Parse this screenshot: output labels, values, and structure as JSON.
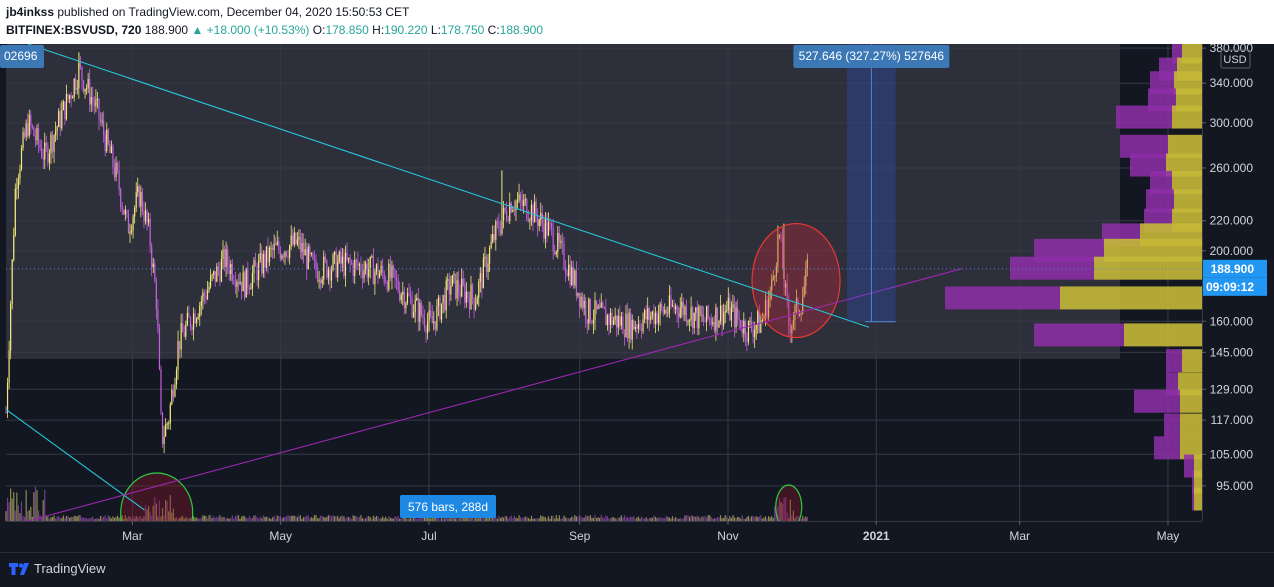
{
  "header": {
    "author": "jb4inkss",
    "published_text": "published on TradingView.com, December 04, 2020 15:50:53 CET",
    "symbol": "BITFINEX:BSVUSD, 720",
    "last": "188.900",
    "change": "▲ +18.000 (+10.53%)",
    "ohlc": [
      {
        "label": "O:",
        "value": "178.850"
      },
      {
        "label": "H:",
        "value": "190.220"
      },
      {
        "label": "L:",
        "value": "178.750"
      },
      {
        "label": "C:",
        "value": "188.900"
      }
    ]
  },
  "footer": {
    "brand": "TradingView"
  },
  "chart_data": {
    "type": "candlestick",
    "title": "BITFINEX:BSVUSD, 720",
    "currency": "USD",
    "y_scale": "log",
    "ylim": [
      85,
      385
    ],
    "y_ticks": [
      380,
      340,
      300,
      260,
      220,
      200,
      160,
      145,
      129,
      117,
      105,
      95
    ],
    "y_tick_labels": [
      "380.000",
      "340.000",
      "300.000",
      "260.000",
      "220.000",
      "200.000",
      "160.000",
      "145.000",
      "129.000",
      "117.000",
      "105.000",
      "95.000"
    ],
    "x_range": [
      "2020-01-09",
      "2021-05-15"
    ],
    "x_ticks": [
      {
        "date": "2020-03-01",
        "label": "Mar"
      },
      {
        "date": "2020-05-01",
        "label": "May"
      },
      {
        "date": "2020-07-01",
        "label": "Jul"
      },
      {
        "date": "2020-09-01",
        "label": "Sep"
      },
      {
        "date": "2020-11-01",
        "label": "Nov"
      },
      {
        "date": "2021-01-01",
        "label": "2021"
      },
      {
        "date": "2021-03-01",
        "label": "Mar"
      },
      {
        "date": "2021-05-01",
        "label": "May"
      }
    ],
    "price_path": [
      {
        "date": "2020-01-09",
        "price": 120
      },
      {
        "date": "2020-01-13",
        "price": 250
      },
      {
        "date": "2020-01-18",
        "price": 300
      },
      {
        "date": "2020-01-25",
        "price": 270
      },
      {
        "date": "2020-02-03",
        "price": 320
      },
      {
        "date": "2020-02-08",
        "price": 355
      },
      {
        "date": "2020-02-15",
        "price": 315
      },
      {
        "date": "2020-02-24",
        "price": 250
      },
      {
        "date": "2020-02-28",
        "price": 215
      },
      {
        "date": "2020-03-04",
        "price": 240
      },
      {
        "date": "2020-03-08",
        "price": 210
      },
      {
        "date": "2020-03-11",
        "price": 170
      },
      {
        "date": "2020-03-13",
        "price": 110
      },
      {
        "date": "2020-03-16",
        "price": 118
      },
      {
        "date": "2020-03-20",
        "price": 150
      },
      {
        "date": "2020-03-28",
        "price": 168
      },
      {
        "date": "2020-04-08",
        "price": 195
      },
      {
        "date": "2020-04-16",
        "price": 180
      },
      {
        "date": "2020-04-28",
        "price": 200
      },
      {
        "date": "2020-05-08",
        "price": 205
      },
      {
        "date": "2020-05-15",
        "price": 188
      },
      {
        "date": "2020-05-25",
        "price": 192
      },
      {
        "date": "2020-06-05",
        "price": 190
      },
      {
        "date": "2020-06-15",
        "price": 184
      },
      {
        "date": "2020-06-25",
        "price": 168
      },
      {
        "date": "2020-07-02",
        "price": 158
      },
      {
        "date": "2020-07-10",
        "price": 180
      },
      {
        "date": "2020-07-20",
        "price": 172
      },
      {
        "date": "2020-07-28",
        "price": 210
      },
      {
        "date": "2020-08-04",
        "price": 235
      },
      {
        "date": "2020-08-12",
        "price": 228
      },
      {
        "date": "2020-08-20",
        "price": 212
      },
      {
        "date": "2020-08-28",
        "price": 188
      },
      {
        "date": "2020-09-04",
        "price": 165
      },
      {
        "date": "2020-09-12",
        "price": 162
      },
      {
        "date": "2020-09-22",
        "price": 158
      },
      {
        "date": "2020-10-02",
        "price": 164
      },
      {
        "date": "2020-10-12",
        "price": 168
      },
      {
        "date": "2020-10-22",
        "price": 160
      },
      {
        "date": "2020-11-01",
        "price": 166
      },
      {
        "date": "2020-11-09",
        "price": 156
      },
      {
        "date": "2020-11-15",
        "price": 160
      },
      {
        "date": "2020-11-19",
        "price": 178
      },
      {
        "date": "2020-11-22",
        "price": 212
      },
      {
        "date": "2020-11-26",
        "price": 158
      },
      {
        "date": "2020-12-01",
        "price": 170
      },
      {
        "date": "2020-12-04",
        "price": 188.9
      }
    ],
    "spike_highs": [
      {
        "date": "2020-02-08",
        "price": 375
      },
      {
        "date": "2020-07-31",
        "price": 258
      },
      {
        "date": "2020-11-24",
        "price": 218
      }
    ],
    "last_price": {
      "value": "188.900",
      "countdown": "09:09:12"
    },
    "trendlines": [
      {
        "name": "descending",
        "color": "#26c6da",
        "from": {
          "date": "2020-01-18",
          "price": 385
        },
        "to": {
          "date": "2020-12-29",
          "price": 157
        }
      },
      {
        "name": "descending-lower",
        "color": "#26c6da",
        "from": {
          "date": "2020-01-09",
          "price": 121
        },
        "to": {
          "date": "2020-03-06",
          "price": 88
        }
      },
      {
        "name": "ascending",
        "color": "#9c27b0",
        "from": {
          "date": "2020-01-18",
          "price": 85
        },
        "to": {
          "date": "2021-02-05",
          "price": 188.9
        }
      }
    ],
    "circles": [
      {
        "date": "2020-11-29",
        "price": 182,
        "color": "red"
      },
      {
        "date": "2020-03-11",
        "price": 96,
        "color": "green"
      },
      {
        "date": "2020-11-26",
        "price": 92,
        "color": "green"
      }
    ],
    "measure_tool": {
      "label": "527.646 (327.27%) 527646",
      "from_date": "2020-12-20",
      "to_date": "2021-01-09"
    },
    "range_tool": {
      "label": "576 bars, 288d",
      "left_label": "02696"
    },
    "volume_profile": [
      {
        "price": 375,
        "up": 0.2,
        "down": 0.1
      },
      {
        "price": 355,
        "up": 0.25,
        "down": 0.18
      },
      {
        "price": 340,
        "up": 0.28,
        "down": 0.24
      },
      {
        "price": 322,
        "up": 0.26,
        "down": 0.28
      },
      {
        "price": 305,
        "up": 0.3,
        "down": 0.56
      },
      {
        "price": 278,
        "up": 0.34,
        "down": 0.48
      },
      {
        "price": 262,
        "up": 0.36,
        "down": 0.36
      },
      {
        "price": 248,
        "up": 0.3,
        "down": 0.22
      },
      {
        "price": 234,
        "up": 0.28,
        "down": 0.28
      },
      {
        "price": 220,
        "up": 0.3,
        "down": 0.28
      },
      {
        "price": 210,
        "up": 0.62,
        "down": 0.38
      },
      {
        "price": 200,
        "up": 0.98,
        "down": 0.7
      },
      {
        "price": 189,
        "up": 1.08,
        "down": 0.84
      },
      {
        "price": 172,
        "up": 1.42,
        "down": 1.15
      },
      {
        "price": 153,
        "up": 0.78,
        "down": 0.9
      },
      {
        "price": 141,
        "up": 0.2,
        "down": 0.16
      },
      {
        "price": 131,
        "up": 0.24,
        "down": 0.12
      },
      {
        "price": 124,
        "up": 0.22,
        "down": 0.46
      },
      {
        "price": 115,
        "up": 0.22,
        "down": 0.16
      },
      {
        "price": 107,
        "up": 0.22,
        "down": 0.26
      },
      {
        "price": 101,
        "up": 0.08,
        "down": 0.1
      },
      {
        "price": 96,
        "up": 0.08,
        "down": 0.02
      },
      {
        "price": 91,
        "up": 0.08,
        "down": 0.02
      }
    ],
    "colors": {
      "background": "#131722",
      "shaded": "#2d2f3a",
      "up_candle": "#f2ea7a",
      "down_candle": "#c561e0",
      "vp_up": "#c5b838",
      "vp_down": "#8e2fa8",
      "descending_line": "#26c6da",
      "ascending_line": "#9c27b0",
      "label_blue": "#2962ff"
    }
  }
}
